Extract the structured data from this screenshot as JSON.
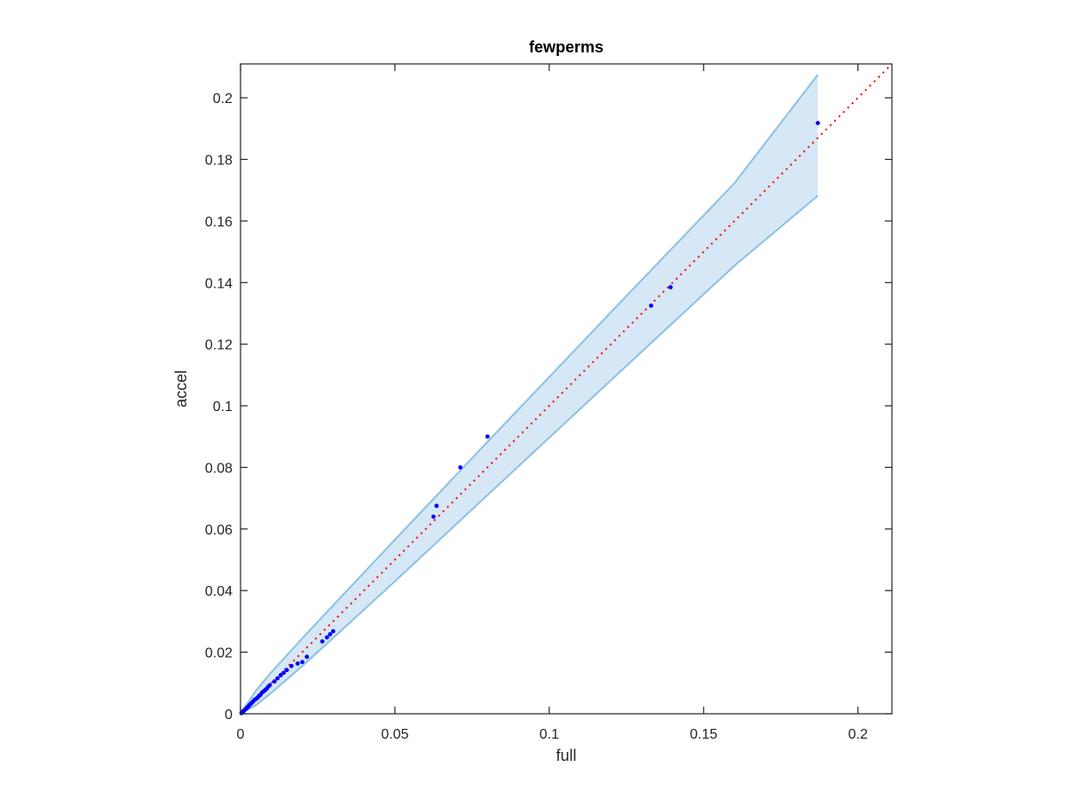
{
  "chart_data": {
    "type": "scatter",
    "title": "fewperms",
    "xlabel": "full",
    "ylabel": "accel",
    "xlim": [
      0,
      0.211
    ],
    "ylim": [
      0,
      0.211
    ],
    "xticks": [
      0,
      0.05,
      0.1,
      0.15,
      0.2
    ],
    "xtick_labels": [
      "0",
      "0.05",
      "0.1",
      "0.15",
      "0.2"
    ],
    "yticks": [
      0,
      0.02,
      0.04,
      0.06,
      0.08,
      0.1,
      0.12,
      0.14,
      0.16,
      0.18,
      0.2
    ],
    "ytick_labels": [
      "0",
      "0.02",
      "0.04",
      "0.06",
      "0.08",
      "0.1",
      "0.12",
      "0.14",
      "0.16",
      "0.18",
      "0.2"
    ],
    "grid": false,
    "colors": {
      "points": "#0000ff",
      "reference_line": "#ff0000",
      "band_fill": "#d6e7f5",
      "band_edge": "#8cc0e1",
      "axes": "#262626"
    },
    "confidence_band": {
      "x": [
        0,
        0.005,
        0.01,
        0.02,
        0.03,
        0.05,
        0.08,
        0.12,
        0.16,
        0.187
      ],
      "upper": [
        0.0,
        0.0075,
        0.0135,
        0.0245,
        0.0352,
        0.0565,
        0.0883,
        0.1304,
        0.1723,
        0.2075
      ],
      "lower": [
        0.0,
        0.0028,
        0.0068,
        0.0155,
        0.0246,
        0.043,
        0.071,
        0.1083,
        0.1455,
        0.1682
      ]
    },
    "reference_line": {
      "x": [
        0,
        0.211
      ],
      "y": [
        0,
        0.211
      ],
      "style": "dotted"
    },
    "series": [
      {
        "values": [
          [
            0.0003,
            0.0002
          ],
          [
            0.0006,
            0.0005
          ],
          [
            0.0008,
            0.0007
          ],
          [
            0.001,
            0.0009
          ],
          [
            0.0012,
            0.0011
          ],
          [
            0.0015,
            0.0014
          ],
          [
            0.0018,
            0.0016
          ],
          [
            0.002,
            0.0019
          ],
          [
            0.0024,
            0.0022
          ],
          [
            0.0028,
            0.0027
          ],
          [
            0.0032,
            0.0031
          ],
          [
            0.0035,
            0.0034
          ],
          [
            0.004,
            0.0039
          ],
          [
            0.0045,
            0.0045
          ],
          [
            0.005,
            0.0048
          ],
          [
            0.0055,
            0.0052
          ],
          [
            0.006,
            0.0058
          ],
          [
            0.0065,
            0.0062
          ],
          [
            0.007,
            0.0069
          ],
          [
            0.0075,
            0.0073
          ],
          [
            0.008,
            0.0077
          ],
          [
            0.0085,
            0.0082
          ],
          [
            0.009,
            0.0088
          ],
          [
            0.0095,
            0.0093
          ],
          [
            0.011,
            0.0105
          ],
          [
            0.012,
            0.0115
          ],
          [
            0.013,
            0.0125
          ],
          [
            0.014,
            0.0133
          ],
          [
            0.015,
            0.0142
          ],
          [
            0.0165,
            0.0155
          ],
          [
            0.0185,
            0.0163
          ],
          [
            0.02,
            0.0168
          ],
          [
            0.0215,
            0.0185
          ],
          [
            0.0265,
            0.0235
          ],
          [
            0.028,
            0.0248
          ],
          [
            0.029,
            0.0258
          ],
          [
            0.03,
            0.0268
          ],
          [
            0.0625,
            0.064
          ],
          [
            0.0635,
            0.0675
          ],
          [
            0.0712,
            0.08
          ],
          [
            0.08,
            0.09
          ],
          [
            0.133,
            0.1325
          ],
          [
            0.1393,
            0.1385
          ],
          [
            0.187,
            0.1918
          ]
        ]
      }
    ]
  }
}
